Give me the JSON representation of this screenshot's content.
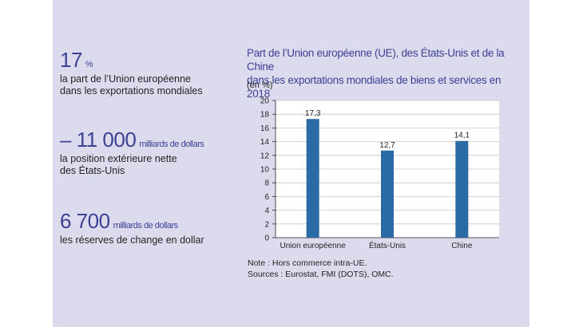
{
  "stats": [
    {
      "value": "17",
      "unit": "%",
      "desc_lines": [
        "la part de l’Union européenne",
        "dans les exportations mondiales"
      ]
    },
    {
      "value": "– 11 000",
      "unit": "milliards de dollars",
      "desc_lines": [
        "la position extérieure nette",
        "des États-Unis"
      ]
    },
    {
      "value": "6 700",
      "unit": "milliards de dollars",
      "desc_lines": [
        "les réserves de change en dollar"
      ]
    }
  ],
  "chart_title_lines": [
    "Part de l’Union européenne (UE), des États-Unis et de la Chine",
    "dans les exportations mondiales de biens et services en 2018"
  ],
  "unit_label": "(en %)",
  "notes": [
    "Note : Hors commerce intra-UE.",
    "Sources : Eurostat, FMI (DOTS), OMC."
  ],
  "colors": {
    "bar": "#2a6aa5",
    "panel": "#dcdbee",
    "accent": "#3d4194"
  },
  "chart_data": {
    "type": "bar",
    "categories": [
      "Union européenne",
      "États-Unis",
      "Chine"
    ],
    "values": [
      17.3,
      12.7,
      14.1
    ],
    "value_labels": [
      "17,3",
      "12,7",
      "14,1"
    ],
    "ylim": [
      0,
      20
    ],
    "yticks": [
      0,
      2,
      4,
      6,
      8,
      10,
      12,
      14,
      16,
      18,
      20
    ],
    "grid": true
  }
}
